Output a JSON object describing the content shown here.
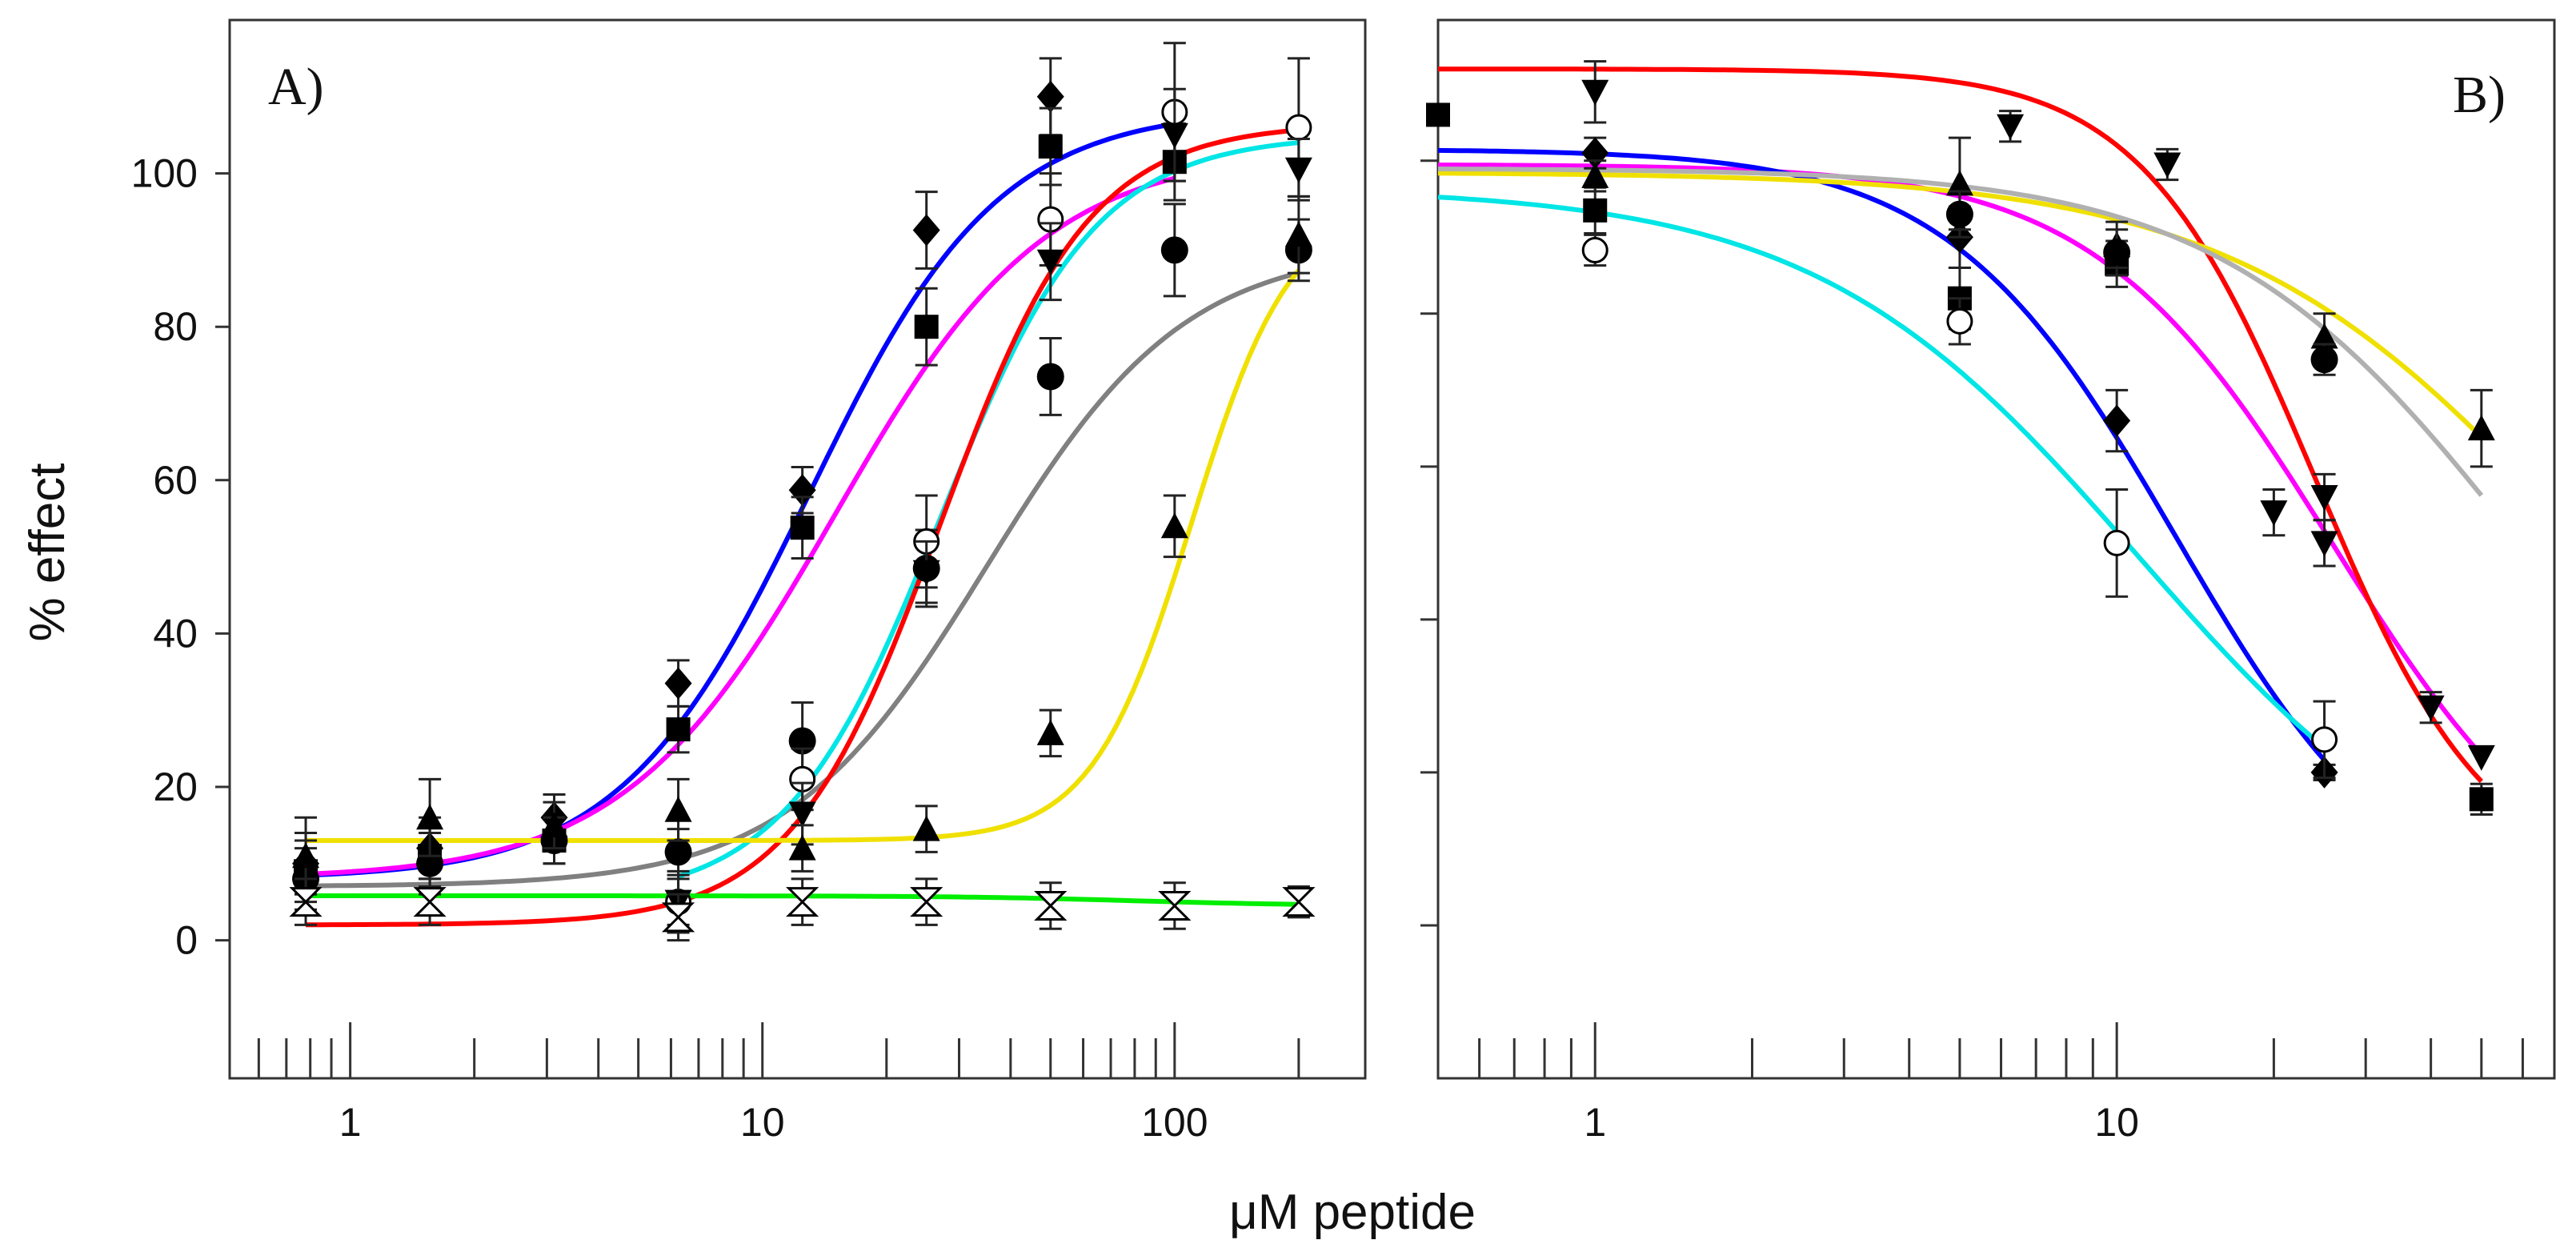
{
  "chart_data": [
    {
      "type": "scatter",
      "panel_label": "A)",
      "xscale": "log",
      "xlim": [
        0.51,
        290
      ],
      "ylim": [
        -18,
        120
      ],
      "xticks": [
        1,
        10,
        100
      ],
      "xtick_labels": [
        "1",
        "10",
        "100"
      ],
      "yticks": [
        0,
        20,
        40,
        60,
        80,
        100
      ],
      "ytick_labels": [
        "0",
        "20",
        "40",
        "60",
        "80",
        "100"
      ],
      "ylabel": "% effect",
      "grid": false,
      "series": [
        {
          "name": "diamond",
          "marker": "diamond",
          "color": "#0000ff",
          "fit": {
            "bottom": 8,
            "top": 108.5,
            "ec50": 13,
            "hill": 1.9,
            "range": [
              0.78,
              100
            ]
          },
          "points": [
            [
              0.78,
              10,
              4
            ],
            [
              1.56,
              12,
              4
            ],
            [
              3.125,
              16,
              3
            ],
            [
              6.25,
              33.5,
              3
            ],
            [
              12.5,
              58.7,
              3
            ],
            [
              25,
              92.6,
              5
            ],
            [
              50,
              110,
              5
            ]
          ]
        },
        {
          "name": "square",
          "marker": "square",
          "color": "#ff00ff",
          "fit": {
            "bottom": 8,
            "top": 103,
            "ec50": 15,
            "hill": 1.7,
            "range": [
              0.78,
              100
            ]
          },
          "points": [
            [
              0.78,
              9,
              4
            ],
            [
              1.56,
              11,
              4
            ],
            [
              3.125,
              13,
              3
            ],
            [
              6.25,
              27.5,
              3
            ],
            [
              12.5,
              53.8,
              4
            ],
            [
              25,
              80,
              5
            ],
            [
              50,
              103.5,
              5
            ],
            [
              100,
              101.5,
              5
            ]
          ]
        },
        {
          "name": "filled circle",
          "marker": "circle",
          "color": "#808080",
          "fit": {
            "bottom": 7,
            "top": 90.5,
            "ec50": 35,
            "hill": 1.8,
            "range": [
              0.78,
              200
            ]
          },
          "points": [
            [
              0.78,
              8,
              4
            ],
            [
              1.56,
              10,
              4
            ],
            [
              3.125,
              13,
              3
            ],
            [
              6.25,
              11.5,
              3
            ],
            [
              12.5,
              26,
              5
            ],
            [
              25,
              48.5,
              5
            ],
            [
              50,
              73.5,
              5
            ],
            [
              100,
              90,
              6
            ],
            [
              200,
              90,
              4
            ]
          ]
        },
        {
          "name": "open circle",
          "marker": "open-circle",
          "color": "#00e5e5",
          "fit": {
            "bottom": 5,
            "top": 105,
            "ec50": 27,
            "hill": 2.3,
            "range": [
              6.25,
              200
            ]
          },
          "points": [
            [
              6.25,
              5,
              4
            ],
            [
              12.5,
              21,
              4
            ],
            [
              25,
              52,
              6
            ],
            [
              50,
              94,
              6
            ],
            [
              100,
              108,
              9
            ],
            [
              200,
              106,
              9
            ]
          ]
        },
        {
          "name": "inverted triangle",
          "marker": "triangle-down",
          "color": "#ff0000",
          "fit": {
            "bottom": 2,
            "top": 106.5,
            "ec50": 27,
            "hill": 2.4,
            "range": [
              0.78,
              200
            ]
          },
          "points": [
            [
              6.25,
              5,
              3
            ],
            [
              12.5,
              16.5,
              4
            ],
            [
              25,
              48,
              4
            ],
            [
              50,
              88.5,
              5
            ],
            [
              100,
              105,
              6
            ],
            [
              200,
              100.5,
              4
            ]
          ]
        },
        {
          "name": "triangle",
          "marker": "triangle",
          "color": "#f0e000",
          "fit": {
            "bottom": 13,
            "top": 96,
            "ec50": 110,
            "hill": 3.6,
            "range": [
              0.78,
              200
            ]
          },
          "points": [
            [
              0.78,
              11,
              5
            ],
            [
              1.56,
              16,
              5
            ],
            [
              3.125,
              15,
              3
            ],
            [
              6.25,
              17,
              4
            ],
            [
              12.5,
              12,
              3
            ],
            [
              25,
              14.5,
              3
            ],
            [
              50,
              27,
              3
            ],
            [
              100,
              54,
              4
            ],
            [
              200,
              92,
              5
            ]
          ]
        },
        {
          "name": "hourglass",
          "marker": "hourglass",
          "color": "#00ee00",
          "fit": {
            "bottom": 4.5,
            "top": 5.8,
            "ec50": 80,
            "hill": -2,
            "range": [
              0.78,
              200
            ]
          },
          "points": [
            [
              0.78,
              5,
              3
            ],
            [
              1.56,
              5,
              3
            ],
            [
              6.25,
              3,
              3
            ],
            [
              12.5,
              5,
              3
            ],
            [
              25,
              5,
              3
            ],
            [
              50,
              4.5,
              3
            ],
            [
              100,
              4.5,
              3
            ],
            [
              200,
              5,
              2
            ]
          ]
        }
      ]
    },
    {
      "type": "scatter",
      "panel_label": "B)",
      "xscale": "log",
      "xlim": [
        0.5,
        69
      ],
      "ylim": [
        -20,
        118.4
      ],
      "xticks": [
        1,
        10
      ],
      "xtick_labels": [
        "1",
        "10"
      ],
      "yticks": [
        0,
        20,
        40,
        60,
        80,
        100
      ],
      "grid": false,
      "series": [
        {
          "name": "square",
          "marker": "square",
          "color": "#ff00ff",
          "fit": {
            "bottom": 0,
            "top": 99.5,
            "ec50": 26,
            "hill": -1.9,
            "range": [
              0.5,
              50
            ]
          },
          "points": [
            [
              0.5,
              106,
              0
            ],
            [
              1,
              93.5,
              3
            ],
            [
              5,
              82,
              4
            ],
            [
              10,
              86.5,
              3
            ],
            [
              50,
              16.5,
              2
            ]
          ]
        },
        {
          "name": "inverted triangle",
          "marker": "triangle-down",
          "color": "#ff0000",
          "fit": {
            "bottom": 5,
            "top": 112,
            "ec50": 24,
            "hill": -2.6,
            "range": [
              0.5,
              50
            ]
          },
          "points": [
            [
              1,
              109,
              4
            ],
            [
              6.25,
              104.5,
              2
            ],
            [
              12.5,
              99.5,
              2
            ],
            [
              20,
              54,
              3
            ],
            [
              25,
              56,
              3
            ],
            [
              25,
              50,
              3
            ],
            [
              40,
              28.5,
              2
            ],
            [
              50,
              22,
              0
            ]
          ]
        },
        {
          "name": "diamond",
          "marker": "diamond",
          "color": "#0000ff",
          "fit": {
            "bottom": 0,
            "top": 101.5,
            "ec50": 13,
            "hill": -2,
            "range": [
              0.5,
              25
            ]
          },
          "points": [
            [
              1,
              101,
              2
            ],
            [
              5,
              90,
              4
            ],
            [
              10,
              66,
              4
            ],
            [
              25,
              20,
              1
            ]
          ]
        },
        {
          "name": "open circle",
          "marker": "open-circle",
          "color": "#00e5e5",
          "fit": {
            "bottom": 0,
            "top": 96.5,
            "ec50": 11,
            "hill": -1.4,
            "range": [
              0.5,
              25
            ]
          },
          "points": [
            [
              1,
              88.3,
              2
            ],
            [
              5,
              79,
              3
            ],
            [
              10,
              50,
              7
            ],
            [
              25,
              24.3,
              5
            ]
          ]
        },
        {
          "name": "triangle",
          "marker": "triangle",
          "color": "#f0e000",
          "fit": {
            "bottom": 0,
            "top": 98.5,
            "ec50": 80,
            "hill": -1.3,
            "range": [
              0.5,
              50
            ]
          },
          "points": [
            [
              1,
              98,
              2
            ],
            [
              5,
              97,
              6
            ],
            [
              10,
              89,
              3
            ],
            [
              25,
              77,
              3
            ],
            [
              50,
              65,
              5
            ]
          ]
        },
        {
          "name": "filled circle",
          "marker": "circle",
          "color": "#b0b0b0",
          "fit": {
            "bottom": 0,
            "top": 99,
            "ec50": 60,
            "hill": -1.5,
            "range": [
              0.5,
              50
            ]
          },
          "points": [
            [
              5,
              93,
              3
            ],
            [
              10,
              88,
              3
            ],
            [
              25,
              74,
              2
            ]
          ]
        }
      ]
    }
  ],
  "xlabel": "μM peptide"
}
